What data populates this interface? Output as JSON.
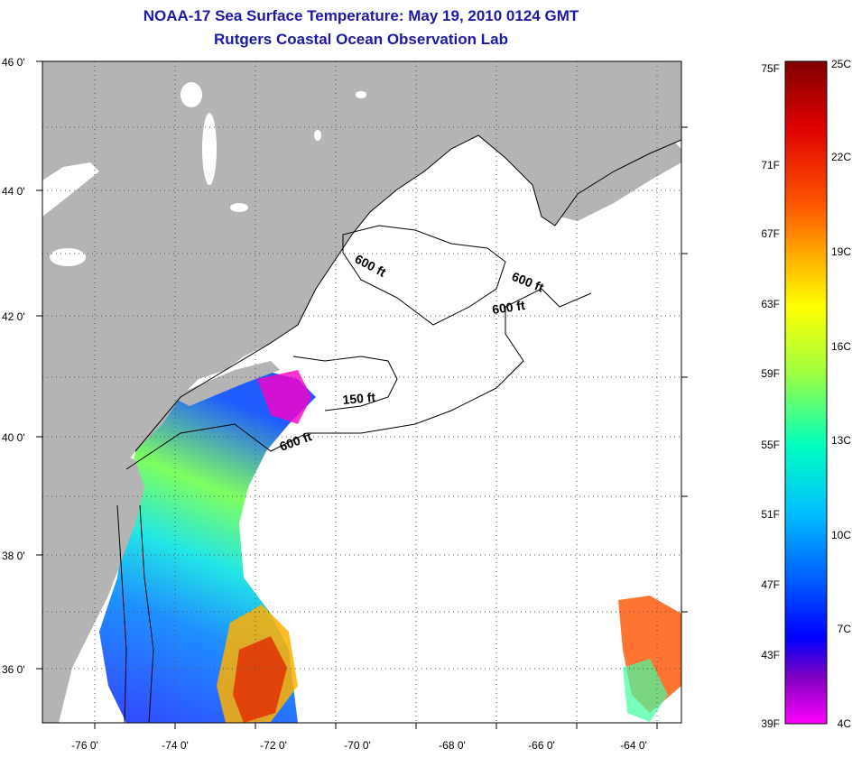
{
  "title": "NOAA-17 Sea Surface Temperature:  May 19, 2010 0124 GMT",
  "subtitle": "Rutgers Coastal Ocean Observation Lab",
  "map": {
    "lon_labels": [
      "-76 0'",
      "-74 0'",
      "-72 0'",
      "-70 0'",
      "-68 0'",
      "-66 0'",
      "-64 0'"
    ],
    "lat_labels": [
      "46 0'",
      "44 0'",
      "42 0'",
      "40 0'",
      "38 0'",
      "36 0'"
    ],
    "contour_labels": [
      {
        "text": "600 ft",
        "rotate": 28
      },
      {
        "text": "600 ft",
        "rotate": 22
      },
      {
        "text": "600 ft",
        "rotate": 8
      },
      {
        "text": "150 ft",
        "rotate": -5
      },
      {
        "text": "600 ft",
        "rotate": -20
      }
    ],
    "colors": {
      "land": "#b4b4b4",
      "ocean": "#ffffff",
      "cloud": "#ffffff",
      "grid": "#555555"
    }
  },
  "colorbar": {
    "fahrenheit_labels": [
      "75F",
      "71F",
      "67F",
      "63F",
      "59F",
      "55F",
      "51F",
      "47F",
      "43F",
      "39F"
    ],
    "celsius_labels": [
      "25C",
      "22C",
      "19C",
      "16C",
      "13C",
      "10C",
      "7C",
      "4C"
    ],
    "gradient": [
      "#800000",
      "#e00000",
      "#ff5a00",
      "#ffb400",
      "#ffff00",
      "#a0ff40",
      "#00ffc0",
      "#00c0ff",
      "#0060ff",
      "#0000ff",
      "#8000c0",
      "#ff00ff"
    ]
  }
}
